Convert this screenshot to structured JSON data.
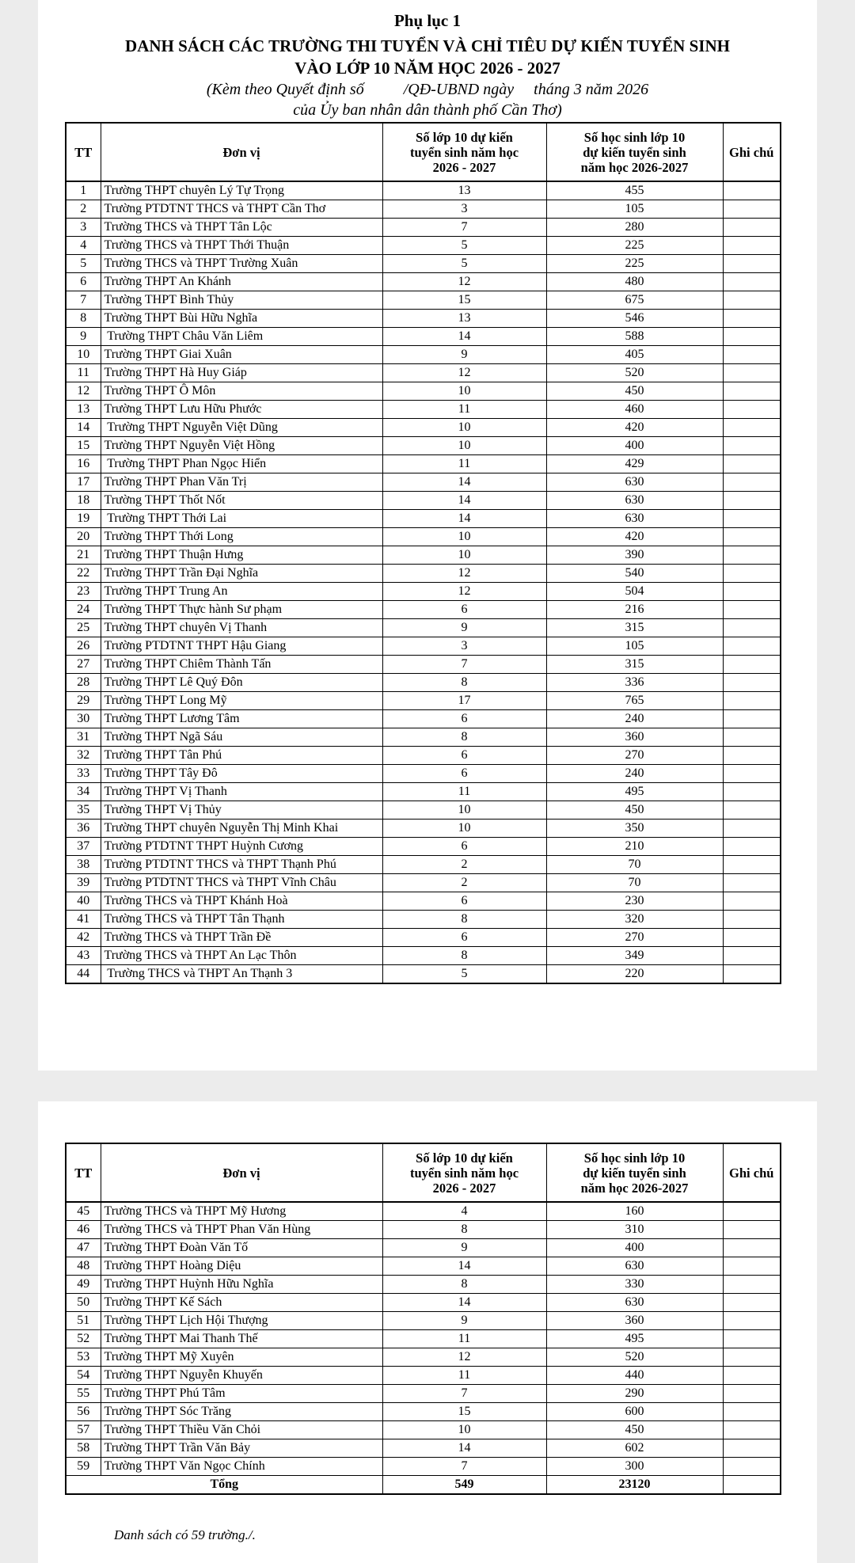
{
  "header": {
    "appendix": "Phụ lục 1",
    "title_line1": "DANH SÁCH CÁC TRƯỜNG THI TUYỂN VÀ CHỈ TIÊU DỰ KIẾN TUYỂN SINH",
    "title_line2": "VÀO LỚP 10 NĂM HỌC 2026 - 2027",
    "subtitle_line1": "(Kèm theo Quyết định số          /QĐ-UBND ngày     tháng 3 năm 2026",
    "subtitle_line2": "của Ủy ban nhân dân thành phố Cần Thơ)"
  },
  "columns": {
    "tt": "TT",
    "unit": "Đơn vị",
    "classes": [
      "Số lớp 10 dự kiến",
      "tuyển sinh năm học",
      "2026 - 2027"
    ],
    "students": [
      "Số học sinh lớp 10",
      "dự kiến tuyển sinh",
      "năm học 2026-2027"
    ],
    "note": "Ghi chú"
  },
  "rows": [
    [
      "1",
      "Trường THPT chuyên Lý Tự Trọng",
      "13",
      "455"
    ],
    [
      "2",
      "Trường PTDTNT THCS và THPT Cần Thơ",
      "3",
      "105"
    ],
    [
      "3",
      "Trường THCS và THPT Tân Lộc",
      "7",
      "280"
    ],
    [
      "4",
      "Trường THCS và THPT Thới Thuận",
      "5",
      "225"
    ],
    [
      "5",
      "Trường THCS và THPT Trường Xuân",
      "5",
      "225"
    ],
    [
      "6",
      "Trường THPT An Khánh",
      "12",
      "480"
    ],
    [
      "7",
      "Trường THPT Bình Thủy",
      "15",
      "675"
    ],
    [
      "8",
      "Trường THPT Bùi Hữu Nghĩa",
      "13",
      "546"
    ],
    [
      "9",
      " Trường THPT Châu Văn Liêm",
      "14",
      "588"
    ],
    [
      "10",
      "Trường THPT Giai Xuân",
      "9",
      "405"
    ],
    [
      "11",
      "Trường THPT Hà Huy Giáp",
      "12",
      "520"
    ],
    [
      "12",
      "Trường THPT Ô Môn",
      "10",
      "450"
    ],
    [
      "13",
      "Trường THPT Lưu Hữu Phước",
      "11",
      "460"
    ],
    [
      "14",
      " Trường THPT Nguyễn Việt Dũng",
      "10",
      "420"
    ],
    [
      "15",
      "Trường THPT Nguyễn Việt Hồng",
      "10",
      "400"
    ],
    [
      "16",
      " Trường THPT Phan Ngọc Hiển",
      "11",
      "429"
    ],
    [
      "17",
      "Trường THPT Phan Văn Trị",
      "14",
      "630"
    ],
    [
      "18",
      "Trường THPT Thốt Nốt",
      "14",
      "630"
    ],
    [
      "19",
      " Trường THPT Thới Lai",
      "14",
      "630"
    ],
    [
      "20",
      "Trường THPT Thới Long",
      "10",
      "420"
    ],
    [
      "21",
      "Trường THPT Thuận Hưng",
      "10",
      "390"
    ],
    [
      "22",
      "Trường THPT Trần Đại Nghĩa",
      "12",
      "540"
    ],
    [
      "23",
      "Trường THPT Trung An",
      "12",
      "504"
    ],
    [
      "24",
      "Trường THPT Thực hành Sư phạm",
      "6",
      "216"
    ],
    [
      "25",
      "Trường THPT chuyên Vị Thanh",
      "9",
      "315"
    ],
    [
      "26",
      "Trường PTDTNT THPT Hậu Giang",
      "3",
      "105"
    ],
    [
      "27",
      "Trường THPT Chiêm Thành Tấn",
      "7",
      "315"
    ],
    [
      "28",
      "Trường THPT Lê Quý Đôn",
      "8",
      "336"
    ],
    [
      "29",
      "Trường THPT Long Mỹ",
      "17",
      "765"
    ],
    [
      "30",
      "Trường THPT Lương Tâm",
      "6",
      "240"
    ],
    [
      "31",
      "Trường THPT Ngã Sáu",
      "8",
      "360"
    ],
    [
      "32",
      "Trường THPT Tân Phú",
      "6",
      "270"
    ],
    [
      "33",
      "Trường THPT Tây Đô",
      "6",
      "240"
    ],
    [
      "34",
      "Trường THPT Vị Thanh",
      "11",
      "495"
    ],
    [
      "35",
      "Trường THPT Vị Thủy",
      "10",
      "450"
    ],
    [
      "36",
      "Trường THPT chuyên Nguyễn Thị Minh Khai",
      "10",
      "350"
    ],
    [
      "37",
      "Trường PTDTNT THPT Huỳnh Cương",
      "6",
      "210"
    ],
    [
      "38",
      "Trường PTDTNT THCS và THPT Thạnh Phú",
      "2",
      "70"
    ],
    [
      "39",
      "Trường PTDTNT THCS và THPT Vĩnh Châu",
      "2",
      "70"
    ],
    [
      "40",
      "Trường THCS và THPT Khánh Hoà",
      "6",
      "230"
    ],
    [
      "41",
      "Trường THCS và THPT Tân Thạnh",
      "8",
      "320"
    ],
    [
      "42",
      "Trường THCS và THPT Trần Đề",
      "6",
      "270"
    ],
    [
      "43",
      "Trường THCS và THPT An Lạc Thôn",
      "8",
      "349"
    ],
    [
      "44",
      " Trường THCS và THPT An Thạnh 3",
      "5",
      "220"
    ]
  ],
  "rows_page2": [
    [
      "45",
      "Trường THCS và THPT Mỹ Hương",
      "4",
      "160"
    ],
    [
      "46",
      "Trường THCS và THPT Phan Văn Hùng",
      "8",
      "310"
    ],
    [
      "47",
      "Trường THPT Đoàn Văn Tố",
      "9",
      "400"
    ],
    [
      "48",
      "Trường THPT Hoàng Diệu",
      "14",
      "630"
    ],
    [
      "49",
      "Trường THPT Huỳnh Hữu Nghĩa",
      "8",
      "330"
    ],
    [
      "50",
      "Trường THPT Kế Sách",
      "14",
      "630"
    ],
    [
      "51",
      "Trường THPT Lịch Hội Thượng",
      "9",
      "360"
    ],
    [
      "52",
      "Trường THPT Mai Thanh Thế",
      "11",
      "495"
    ],
    [
      "53",
      "Trường THPT Mỹ Xuyên",
      "12",
      "520"
    ],
    [
      "54",
      "Trường THPT Nguyễn Khuyến",
      "11",
      "440"
    ],
    [
      "55",
      "Trường THPT Phú Tâm",
      "7",
      "290"
    ],
    [
      "56",
      "Trường THPT Sóc Trăng",
      "15",
      "600"
    ],
    [
      "57",
      "Trường THPT Thiều Văn Chỏi",
      "10",
      "450"
    ],
    [
      "58",
      "Trường THPT Trần Văn Bảy",
      "14",
      "602"
    ],
    [
      "59",
      "Trường THPT Văn Ngọc Chính",
      "7",
      "300"
    ]
  ],
  "total": {
    "label": "Tổng",
    "classes": "549",
    "students": "23120"
  },
  "footer": "Danh sách có 59 trường./."
}
